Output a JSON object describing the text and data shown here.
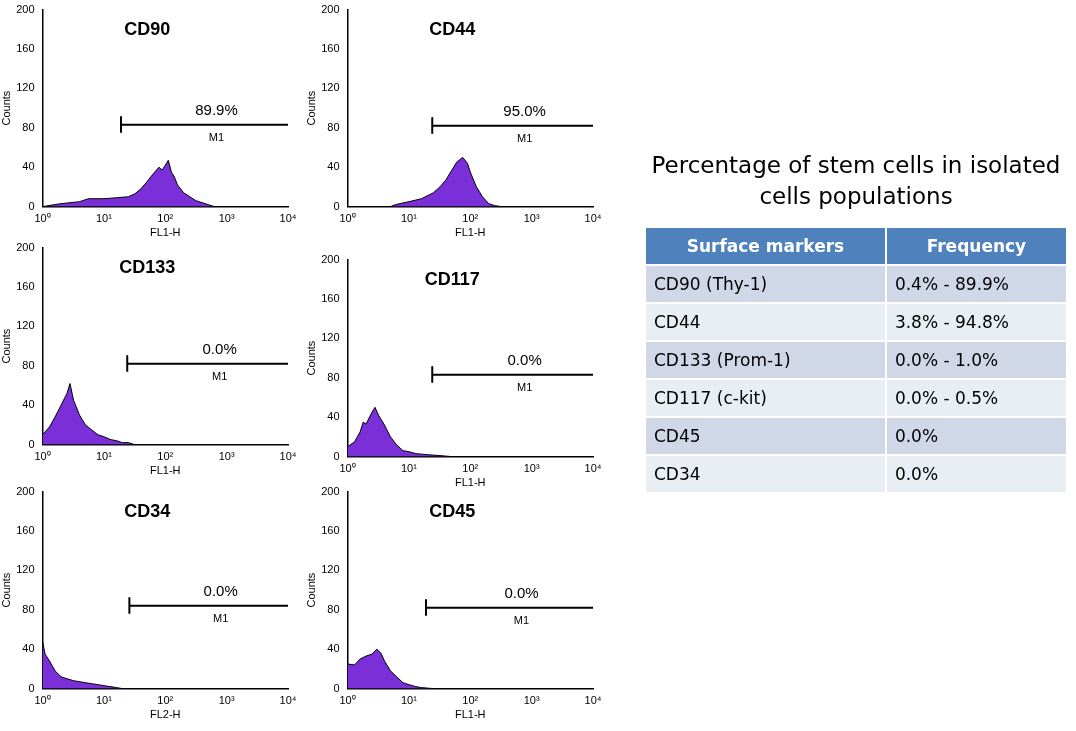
{
  "chart_data": [
    {
      "type": "area",
      "title": "CD90",
      "xlabel": "FL1-H",
      "ylabel": "Counts",
      "log": "x",
      "xlim": [
        1,
        10000
      ],
      "ylim": [
        0,
        200
      ],
      "xticks": [
        {
          "value": 1,
          "label": "10⁰"
        },
        {
          "value": 10,
          "label": "10¹"
        },
        {
          "value": 100,
          "label": "10²"
        },
        {
          "value": 1000,
          "label": "10³"
        },
        {
          "value": 10000,
          "label": "10⁴"
        }
      ],
      "yticks": [
        0,
        40,
        80,
        120,
        160,
        200
      ],
      "series": [
        {
          "type": "area",
          "color": "#7b2fd8",
          "x": [
            1,
            2,
            4,
            5.6,
            10,
            16,
            25,
            32,
            40,
            50,
            63,
            79,
            89,
            100,
            112,
            126,
            141,
            158,
            200,
            251,
            316,
            398,
            501,
            631
          ],
          "values": [
            0,
            3,
            5,
            8,
            8,
            9,
            10,
            13,
            18,
            25,
            33,
            40,
            37,
            42,
            47,
            35,
            30,
            22,
            14,
            10,
            6,
            4,
            2,
            0
          ]
        },
        {
          "type": "line",
          "color": "#000000",
          "x": [
            19,
            19,
            19,
            10000
          ],
          "values": [
            75,
            91,
            83,
            83
          ]
        }
      ],
      "annotations": [
        "89.9%",
        "M1"
      ]
    },
    {
      "type": "area",
      "title": "CD44",
      "xlabel": "FL1-H",
      "ylabel": "Counts",
      "log": "x",
      "xlim": [
        1,
        10000
      ],
      "ylim": [
        0,
        200
      ],
      "xticks": [
        {
          "value": 1,
          "label": "10⁰"
        },
        {
          "value": 10,
          "label": "10¹"
        },
        {
          "value": 100,
          "label": "10²"
        },
        {
          "value": 1000,
          "label": "10³"
        },
        {
          "value": 10000,
          "label": "10⁴"
        }
      ],
      "yticks": [
        0,
        40,
        80,
        120,
        160,
        200
      ],
      "series": [
        {
          "type": "area",
          "color": "#7b2fd8",
          "x": [
            1,
            5,
            6,
            10,
            16,
            25,
            32,
            40,
            50,
            60,
            75,
            90,
            100,
            126,
            158,
            200,
            250,
            320
          ],
          "values": [
            0,
            0,
            2,
            5,
            8,
            14,
            20,
            27,
            37,
            45,
            50,
            44,
            35,
            20,
            10,
            3,
            1,
            0
          ]
        },
        {
          "type": "line",
          "color": "#000000",
          "x": [
            24,
            24,
            24,
            10000
          ],
          "values": [
            74,
            90,
            82,
            82
          ]
        }
      ],
      "annotations": [
        "95.0%",
        "M1"
      ]
    },
    {
      "type": "area",
      "title": "CD133",
      "xlabel": "FL1-H",
      "ylabel": "Counts",
      "log": "x",
      "xlim": [
        1,
        10000
      ],
      "ylim": [
        0,
        200
      ],
      "xticks": [
        {
          "value": 1,
          "label": "10⁰"
        },
        {
          "value": 10,
          "label": "10¹"
        },
        {
          "value": 100,
          "label": "10²"
        },
        {
          "value": 1000,
          "label": "10³"
        },
        {
          "value": 10000,
          "label": "10⁴"
        }
      ],
      "yticks": [
        0,
        40,
        80,
        120,
        160,
        200
      ],
      "series": [
        {
          "type": "area",
          "color": "#7b2fd8",
          "x": [
            1,
            1.3,
            1.6,
            2,
            2.5,
            2.8,
            3.2,
            4,
            5,
            6.3,
            8,
            10,
            13,
            16,
            20,
            25,
            32
          ],
          "values": [
            10,
            18,
            28,
            40,
            52,
            62,
            45,
            30,
            20,
            15,
            10,
            8,
            5,
            4,
            2,
            2,
            0
          ]
        },
        {
          "type": "line",
          "color": "#000000",
          "x": [
            24,
            24,
            24,
            10000
          ],
          "values": [
            74,
            90,
            82,
            82
          ]
        }
      ],
      "annotations": [
        "0.0%",
        "M1"
      ]
    },
    {
      "type": "area",
      "title": "CD117",
      "xlabel": "FL1-H",
      "ylabel": "Counts",
      "log": "x",
      "xlim": [
        1,
        10000
      ],
      "ylim": [
        0,
        200
      ],
      "xticks": [
        {
          "value": 1,
          "label": "10⁰"
        },
        {
          "value": 10,
          "label": "10¹"
        },
        {
          "value": 100,
          "label": "10²"
        },
        {
          "value": 1000,
          "label": "10³"
        },
        {
          "value": 10000,
          "label": "10⁴"
        }
      ],
      "yticks": [
        0,
        40,
        80,
        120,
        160,
        200
      ],
      "series": [
        {
          "type": "area",
          "color": "#7b2fd8",
          "x": [
            1,
            1.3,
            1.6,
            1.8,
            2,
            2.5,
            2.8,
            3.2,
            4,
            5,
            6.3,
            8,
            10,
            13,
            20,
            32,
            50
          ],
          "values": [
            10,
            15,
            25,
            35,
            33,
            45,
            50,
            42,
            32,
            20,
            12,
            6,
            5,
            3,
            2,
            1,
            0
          ]
        },
        {
          "type": "line",
          "color": "#000000",
          "x": [
            24,
            24,
            24,
            10000
          ],
          "values": [
            75,
            91,
            83,
            83
          ]
        }
      ],
      "annotations": [
        "0.0%",
        "M1"
      ]
    },
    {
      "type": "area",
      "title": "CD34",
      "xlabel": "FL2-H",
      "ylabel": "Counts",
      "log": "x",
      "xlim": [
        1,
        10000
      ],
      "ylim": [
        0,
        200
      ],
      "xticks": [
        {
          "value": 1,
          "label": "10⁰"
        },
        {
          "value": 10,
          "label": "10¹"
        },
        {
          "value": 100,
          "label": "10²"
        },
        {
          "value": 1000,
          "label": "10³"
        },
        {
          "value": 10000,
          "label": "10⁴"
        }
      ],
      "yticks": [
        0,
        40,
        80,
        120,
        160,
        200
      ],
      "series": [
        {
          "type": "area",
          "color": "#7b2fd8",
          "x": [
            1,
            1.1,
            1.3,
            1.6,
            2,
            2.5,
            3.2,
            4,
            5,
            6.3,
            8,
            10,
            13,
            16,
            20
          ],
          "values": [
            48,
            35,
            28,
            18,
            12,
            10,
            8,
            7,
            6,
            5,
            4,
            3,
            2,
            1,
            0
          ]
        },
        {
          "type": "line",
          "color": "#000000",
          "x": [
            26,
            26,
            26,
            10000
          ],
          "values": [
            76,
            92,
            84,
            84
          ]
        }
      ],
      "annotations": [
        "0.0%",
        "M1"
      ]
    },
    {
      "type": "area",
      "title": "CD45",
      "xlabel": "FL1-H",
      "ylabel": "Counts",
      "log": "x",
      "xlim": [
        1,
        10000
      ],
      "ylim": [
        0,
        200
      ],
      "xticks": [
        {
          "value": 1,
          "label": "10⁰"
        },
        {
          "value": 10,
          "label": "10¹"
        },
        {
          "value": 100,
          "label": "10²"
        },
        {
          "value": 1000,
          "label": "10³"
        },
        {
          "value": 10000,
          "label": "10⁴"
        }
      ],
      "yticks": [
        0,
        40,
        80,
        120,
        160,
        200
      ],
      "series": [
        {
          "type": "area",
          "color": "#7b2fd8",
          "x": [
            1,
            1.3,
            1.6,
            2,
            2.5,
            3,
            3.5,
            4,
            5,
            6.3,
            8,
            10,
            13,
            16,
            25
          ],
          "values": [
            25,
            24,
            30,
            33,
            35,
            40,
            36,
            28,
            18,
            12,
            6,
            4,
            2,
            1,
            0
          ]
        },
        {
          "type": "line",
          "color": "#000000",
          "x": [
            19,
            19,
            19,
            10000
          ],
          "values": [
            74,
            90,
            82,
            82
          ]
        }
      ],
      "annotations": [
        "0.0%",
        "M1"
      ]
    },
    {
      "type": "other",
      "title": "Percentage of stem cells in isolated cells populations",
      "annotations": [
        "Surface markers",
        "Frequency",
        "CD90 (Thy-1)",
        "0.4% - 89.9%",
        "CD44",
        "3.8% - 94.8%",
        "CD133 (Prom-1)",
        "0.0% - 1.0%",
        "CD117 (c-kit)",
        "0.0% - 0.5%",
        "CD45",
        "0.0%",
        "CD34",
        "0.0%"
      ]
    }
  ]
}
